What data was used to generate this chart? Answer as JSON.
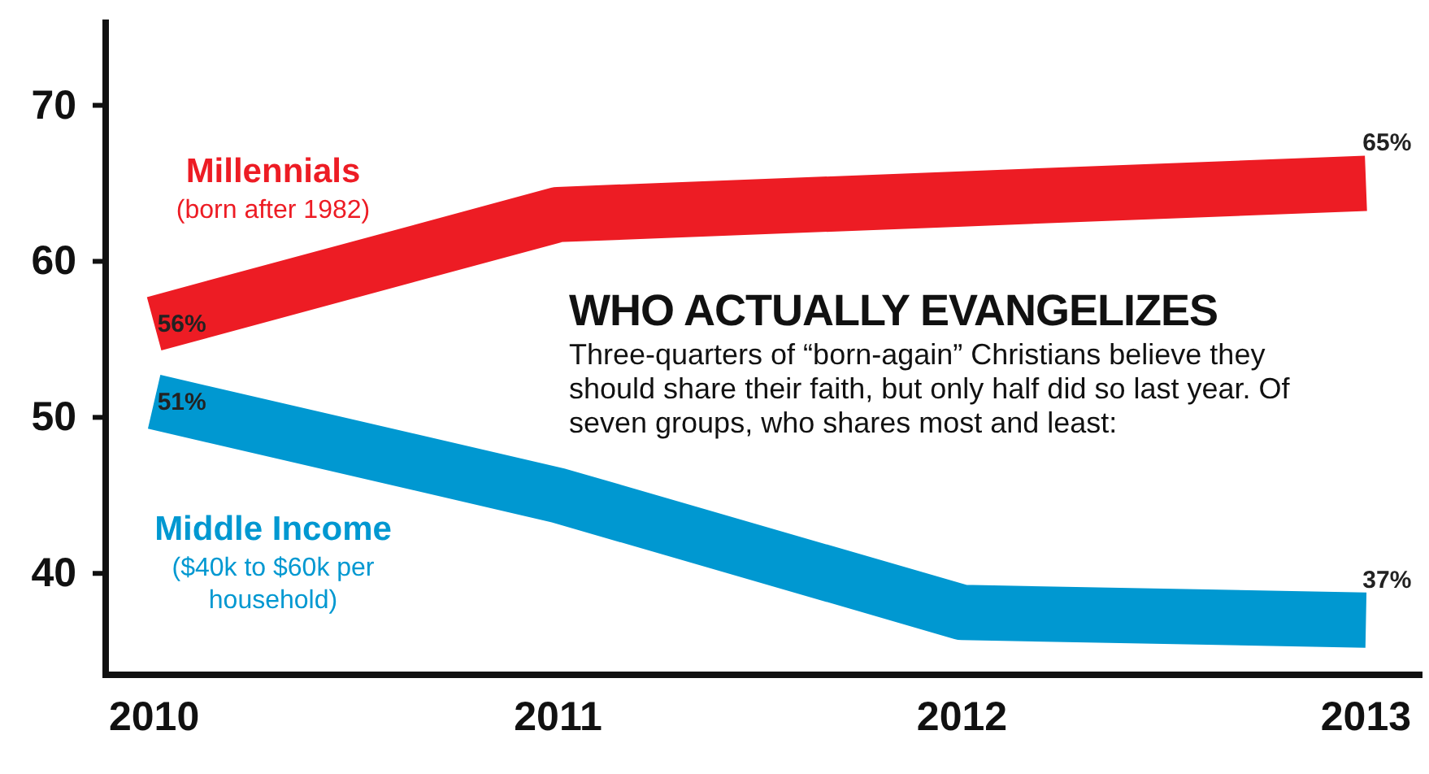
{
  "chart_data": {
    "type": "line",
    "title": "WHO ACTUALLY EVANGELIZES",
    "subtitle": "Three-quarters of “born-again” Christians believe they should share their faith, but only half did so last year. Of seven groups, who shares most and least:",
    "x": [
      2010,
      2011,
      2012,
      2013
    ],
    "xlim": [
      2009.88,
      2013.14
    ],
    "xticks": [
      2010,
      2011,
      2012,
      2013
    ],
    "ylim": [
      33.5,
      75.5
    ],
    "yticks": [
      40,
      50,
      60,
      70
    ],
    "series": [
      {
        "name": "Millennials",
        "color": "#ed1c24",
        "values": [
          56,
          63,
          64,
          65
        ],
        "value_labels": [
          "56%",
          null,
          null,
          "65%"
        ]
      },
      {
        "name": "Middle Income",
        "color": "#0098d1",
        "values": [
          51,
          45,
          37.5,
          37
        ],
        "value_labels": [
          "51%",
          null,
          null,
          "37%"
        ]
      }
    ],
    "annotations": [
      "(born after 1982)",
      "($40k to $60k per household)"
    ],
    "grid": false,
    "marker": "none",
    "line_style": "solid"
  }
}
